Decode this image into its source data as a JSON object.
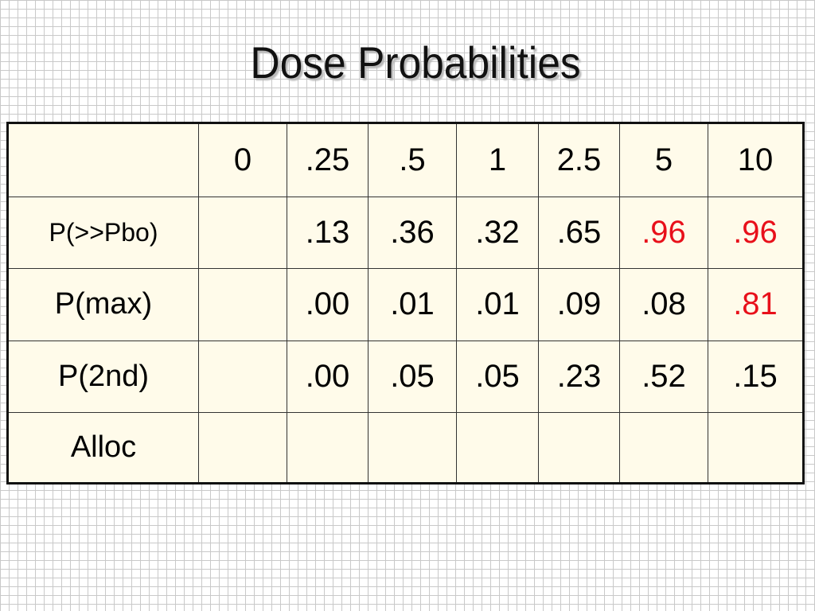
{
  "title": "Dose Probabilities",
  "table": {
    "header": [
      "",
      "0",
      ".25",
      ".5",
      "1",
      "2.5",
      "5",
      "10"
    ],
    "rows": [
      {
        "label": "P(>>Pbo)",
        "cells": [
          "",
          ".13",
          ".36",
          ".32",
          ".65",
          ".96",
          ".96"
        ],
        "highlight": [
          false,
          false,
          false,
          false,
          false,
          true,
          true
        ]
      },
      {
        "label": "P(max)",
        "cells": [
          "",
          ".00",
          ".01",
          ".01",
          ".09",
          ".08",
          ".81"
        ],
        "highlight": [
          false,
          false,
          false,
          false,
          false,
          false,
          true
        ]
      },
      {
        "label": "P(2nd)",
        "cells": [
          "",
          ".00",
          ".05",
          ".05",
          ".23",
          ".52",
          ".15"
        ],
        "highlight": [
          false,
          false,
          false,
          false,
          false,
          false,
          false
        ]
      },
      {
        "label": "Alloc",
        "cells": [
          "",
          "",
          "",
          "",
          "",
          "",
          ""
        ],
        "highlight": [
          false,
          false,
          false,
          false,
          false,
          false,
          false
        ]
      }
    ]
  },
  "colors": {
    "highlight": "#e8101a",
    "table_fill": "#fffbea"
  }
}
